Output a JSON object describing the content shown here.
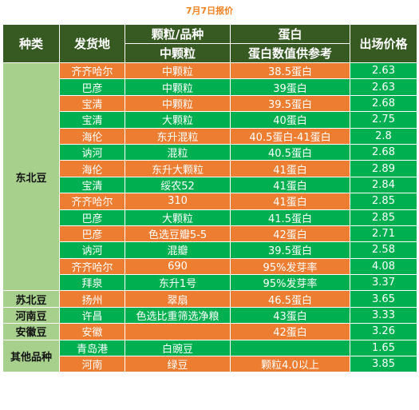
{
  "title": "7月7日报价",
  "headers": {
    "category": "种类",
    "origin": "发货地",
    "grain_top": "颗粒/品种",
    "grain_sub": "中颗粒",
    "protein_top": "蛋白",
    "protein_sub": "蛋白数值供参考",
    "price": "出场价格"
  },
  "categories": {
    "dongbei": "东北豆",
    "subei": "苏北豆",
    "henan": "河南豆",
    "anhui": "安徽豆",
    "other": "其他品种"
  },
  "rows": [
    {
      "origin": "齐齐哈尔",
      "grain": "中颗粒",
      "protein": "38.5蛋白",
      "price": "2.63"
    },
    {
      "origin": "巴彦",
      "grain": "中颗粒",
      "protein": "39蛋白",
      "price": "2.63"
    },
    {
      "origin": "宝清",
      "grain": "中颗粒",
      "protein": "39.5蛋白",
      "price": "2.68"
    },
    {
      "origin": "宝清",
      "grain": "大颗粒",
      "protein": "40蛋白",
      "price": "2.75"
    },
    {
      "origin": "海伦",
      "grain": "东升混粒",
      "protein": "40.5蛋白-41蛋白",
      "price": "2.8"
    },
    {
      "origin": "讷河",
      "grain": "混粒",
      "protein": "40.5蛋白",
      "price": "2.68"
    },
    {
      "origin": "海伦",
      "grain": "东升大颗粒",
      "protein": "41蛋白",
      "price": "2.89"
    },
    {
      "origin": "宝清",
      "grain": "绥农52",
      "protein": "41蛋白",
      "price": "2.84"
    },
    {
      "origin": "齐齐哈尔",
      "grain": "310",
      "protein": "41蛋白",
      "price": "2.85"
    },
    {
      "origin": "巴彦",
      "grain": "大颗粒",
      "protein": "41.5蛋白",
      "price": "2.85"
    },
    {
      "origin": "巴彦",
      "grain": "色选豆瓣5-5",
      "protein": "42蛋白",
      "price": "2.71"
    },
    {
      "origin": "讷河",
      "grain": "混瓣",
      "protein": "39.5蛋白",
      "price": "2.58"
    },
    {
      "origin": "齐齐哈尔",
      "grain": "690",
      "protein": "95%发芽率",
      "price": "4.08"
    },
    {
      "origin": "拜泉",
      "grain": "东升1号",
      "protein": "95%发芽率",
      "price": "3.37"
    },
    {
      "origin": "扬州",
      "grain": "翠扇",
      "protein": "46.5蛋白",
      "price": "3.65"
    },
    {
      "origin": "许昌",
      "grain": "色选比重筛选净粮",
      "protein": "43蛋白",
      "price": "3.33"
    },
    {
      "origin": "安徽",
      "grain": "",
      "protein": "42蛋白",
      "price": "3.26"
    },
    {
      "origin": "青岛港",
      "grain": "白豌豆",
      "protein": "",
      "price": "1.65"
    },
    {
      "origin": "河南",
      "grain": "绿豆",
      "protein": "颗粒4.0以上",
      "price": "3.85"
    }
  ],
  "colors": {
    "header_bg": "#375a23",
    "category_bg": "#a8d08d",
    "row_orange": "#ed7d31",
    "row_green": "#00b050",
    "title_color": "#f58220"
  }
}
